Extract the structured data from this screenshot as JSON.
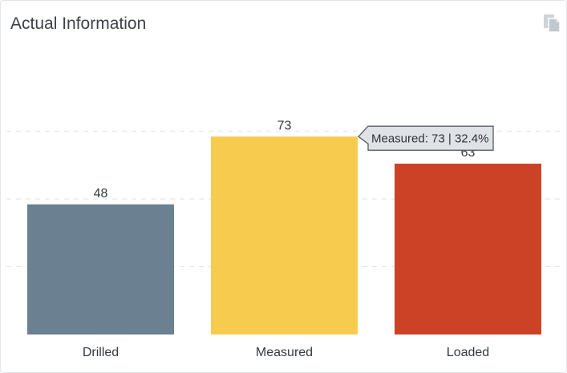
{
  "widget": {
    "title": "Actual Information",
    "copy_icon": "copy-document-icon"
  },
  "chart_data": {
    "type": "bar",
    "categories": [
      "Drilled",
      "Measured",
      "Loaded"
    ],
    "values": [
      48,
      73,
      63
    ],
    "colors": [
      "#6b8090",
      "#f7cb4d",
      "#cc4226"
    ],
    "ylim": [
      0,
      100
    ],
    "grid": true,
    "tooltip": {
      "category": "Measured",
      "text": "Measured: 73 | 32.4%"
    }
  }
}
